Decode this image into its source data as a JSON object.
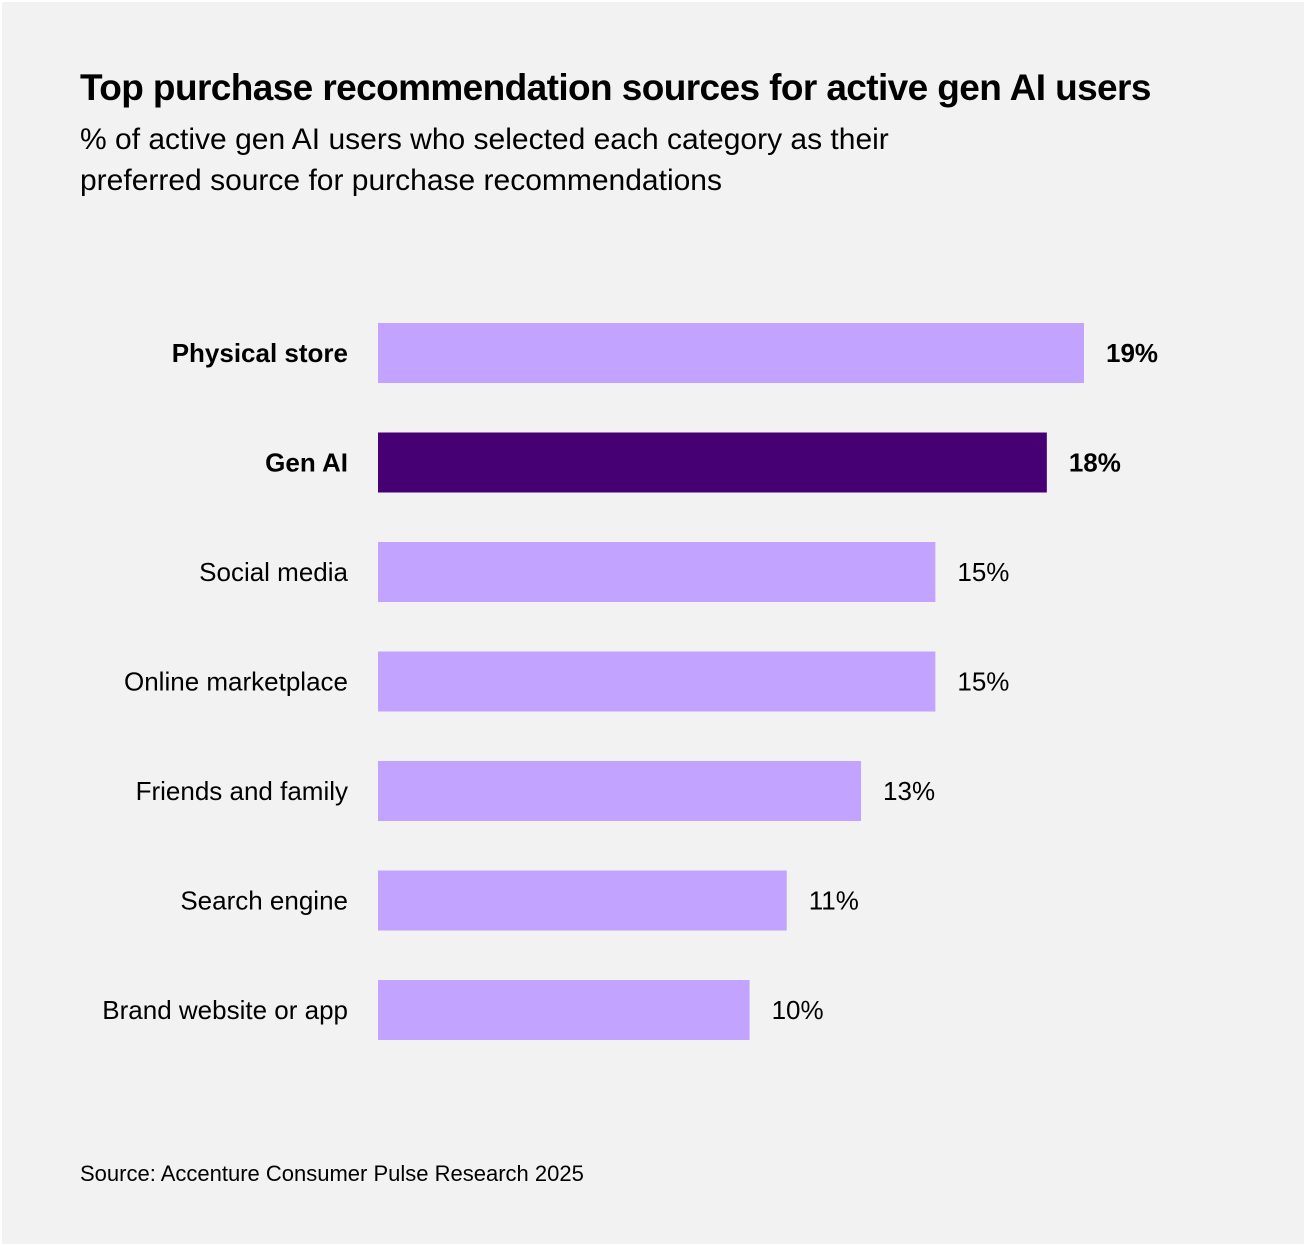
{
  "colors": {
    "background": "#f2f2f2",
    "bar": "#c2a3ff",
    "highlight_bar": "#460073",
    "text": "#000000"
  },
  "chart_data": {
    "type": "bar",
    "orientation": "horizontal",
    "title": "Top purchase recommendation sources for active gen AI users",
    "subtitle": "% of active gen AI users who selected each category as their preferred source for purchase recommendations",
    "categories": [
      "Physical store",
      "Gen AI",
      "Social media",
      "Online marketplace",
      "Friends and family",
      "Search engine",
      "Brand website or app"
    ],
    "values": [
      19,
      18,
      15,
      15,
      13,
      11,
      10
    ],
    "value_labels": [
      "19%",
      "18%",
      "15%",
      "15%",
      "13%",
      "11%",
      "10%"
    ],
    "bold": [
      true,
      true,
      false,
      false,
      false,
      false,
      false
    ],
    "highlight": [
      false,
      true,
      false,
      false,
      false,
      false,
      false
    ],
    "unit": "%",
    "xlim": [
      0,
      19
    ],
    "grid": false,
    "xlabel": "",
    "ylabel": ""
  },
  "source": "Source: Accenture Consumer Pulse Research 2025"
}
